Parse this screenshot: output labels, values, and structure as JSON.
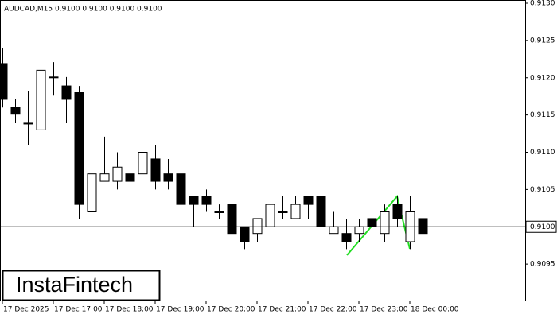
{
  "chart_data": {
    "type": "candlestick",
    "subtitle": "AUDCAD,M15  0.9100 0.9100 0.9100 0.9100",
    "brand": "InstaFintech",
    "categories": [
      "17 Dec 2025",
      null,
      null,
      null,
      "17 Dec 17:00",
      null,
      null,
      null,
      "17 Dec 18:00",
      null,
      null,
      null,
      "17 Dec 19:00",
      null,
      null,
      null,
      "17 Dec 20:00",
      null,
      null,
      null,
      "17 Dec 21:00",
      null,
      null,
      null,
      "17 Dec 22:00",
      null,
      null,
      null,
      "17 Dec 23:00",
      null,
      null,
      null,
      "18 Dec 00:00",
      null
    ],
    "open": [
      0.91219,
      0.9116,
      0.91139,
      0.9113,
      0.91201,
      0.91189,
      0.9118,
      0.9102,
      0.91061,
      0.91061,
      0.91071,
      0.91071,
      0.91091,
      0.91071,
      0.91071,
      0.91041,
      0.91041,
      0.9102,
      0.9103,
      0.91,
      0.90991,
      0.91,
      0.9102,
      0.91011,
      0.91041,
      0.91041,
      0.90991,
      0.90991,
      0.90991,
      0.91011,
      0.90991,
      0.9103,
      0.9098,
      0.91011
    ],
    "high": [
      0.9124,
      0.91171,
      0.91182,
      0.91221,
      0.91221,
      0.91201,
      0.91189,
      0.9108,
      0.91121,
      0.911,
      0.9108,
      0.911,
      0.9111,
      0.91091,
      0.9108,
      0.91041,
      0.9105,
      0.9103,
      0.91041,
      0.91,
      0.91011,
      0.9103,
      0.91041,
      0.91041,
      0.91041,
      0.91041,
      0.9102,
      0.91011,
      0.91011,
      0.9102,
      0.9103,
      0.91041,
      0.91041,
      0.9111
    ],
    "low": [
      0.9116,
      0.91139,
      0.9111,
      0.91121,
      0.91176,
      0.91139,
      0.91011,
      0.9102,
      0.91061,
      0.9105,
      0.9105,
      0.91071,
      0.9105,
      0.9105,
      0.9103,
      0.91,
      0.9102,
      0.91011,
      0.9098,
      0.9097,
      0.9098,
      0.91,
      0.91011,
      0.91011,
      0.91011,
      0.90991,
      0.90991,
      0.9097,
      0.9098,
      0.90991,
      0.9098,
      0.91,
      0.9097,
      0.9098
    ],
    "close": [
      0.91171,
      0.91151,
      0.91139,
      0.9121,
      0.91201,
      0.91171,
      0.9103,
      0.91071,
      0.91071,
      0.9108,
      0.91061,
      0.911,
      0.91061,
      0.91061,
      0.9103,
      0.9103,
      0.9103,
      0.9102,
      0.90991,
      0.9098,
      0.91011,
      0.9103,
      0.9102,
      0.9103,
      0.9103,
      0.91,
      0.91,
      0.9098,
      0.91,
      0.91,
      0.9102,
      0.91011,
      0.9102,
      0.90991
    ],
    "up_color": "#ffffff",
    "down_color": "#000000",
    "current_price": {
      "value": 0.91,
      "label": "0.9100"
    },
    "ylim": [
      0.909,
      0.913
    ],
    "yticks": [
      {
        "value": 0.91,
        "label": "0.9100"
      },
      0.9095,
      0.9105,
      {
        "value": 0.911,
        "label": "0.9110"
      },
      0.9115,
      {
        "value": 0.912,
        "label": "0.9120"
      },
      0.9125,
      {
        "value": 0.913,
        "label": "0.9130"
      }
    ]
  }
}
